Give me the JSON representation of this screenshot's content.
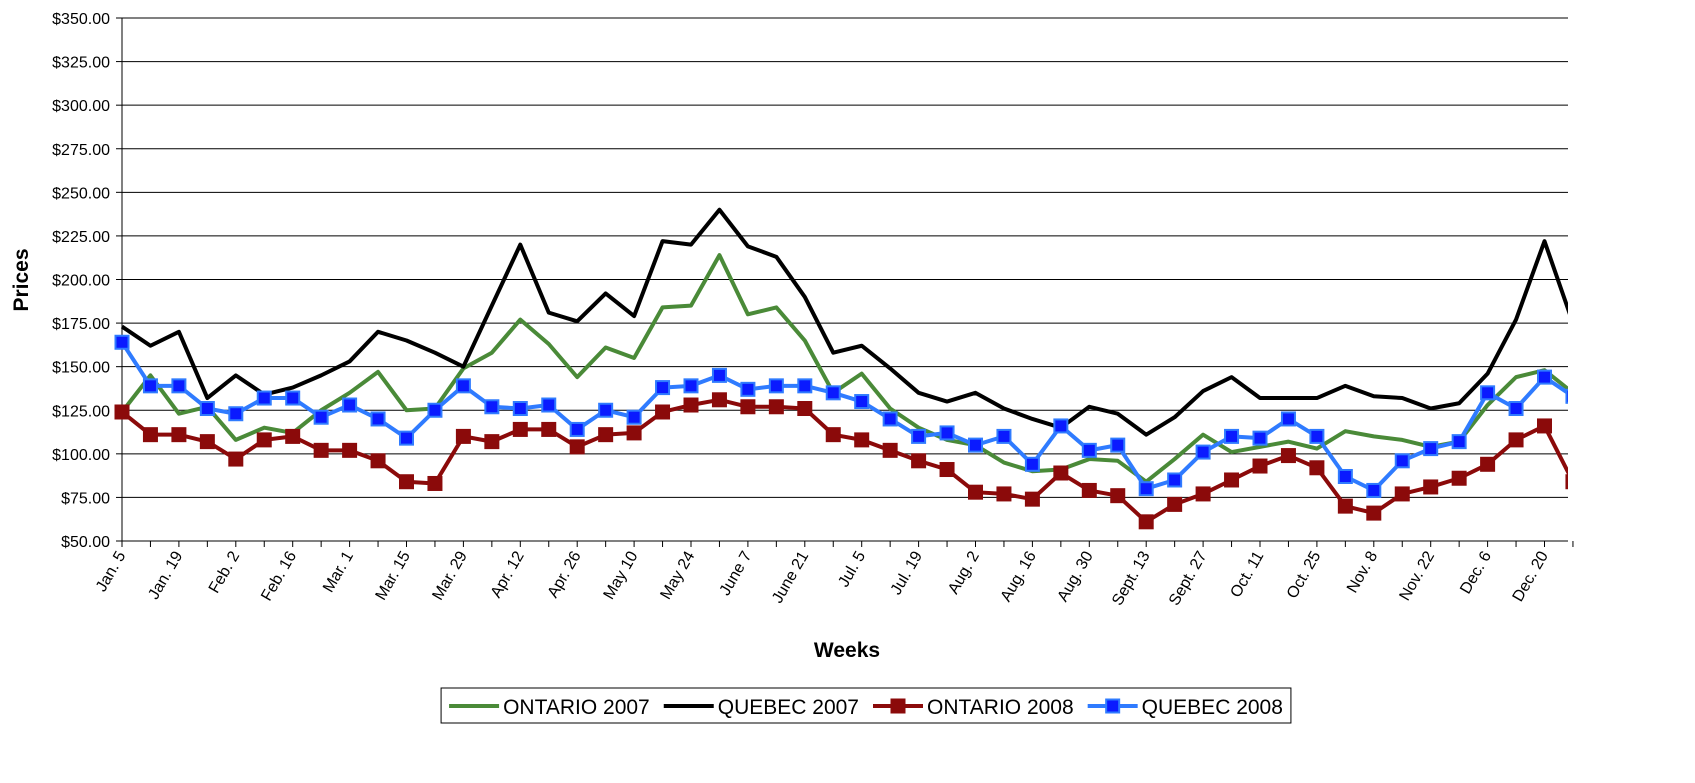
{
  "chart_data": {
    "type": "line",
    "x_label": "Weeks",
    "y_label": "Prices",
    "categories": [
      "Jan. 5",
      null,
      "Jan. 19",
      null,
      "Feb. 2",
      null,
      "Feb. 16",
      null,
      "Mar. 1",
      null,
      "Mar. 15",
      null,
      "Mar. 29",
      null,
      "Apr. 12",
      null,
      "Apr. 26",
      null,
      "May 10",
      null,
      "May 24",
      null,
      "June 7",
      null,
      "June 21",
      null,
      "Jul. 5",
      null,
      "Jul. 19",
      null,
      "Aug. 2",
      null,
      "Aug. 16",
      null,
      "Aug. 30",
      null,
      "Sept. 13",
      null,
      "Sept. 27",
      null,
      "Oct. 11",
      null,
      "Oct. 25",
      null,
      "Nov. 8",
      null,
      "Nov. 22",
      null,
      "Dec. 6",
      null,
      "Dec. 20",
      null
    ],
    "series": [
      {
        "name": "ONTARIO 2007",
        "color": "#4a8a38",
        "marker": "none",
        "values": [
          124,
          145,
          123,
          127,
          108,
          115,
          112,
          125,
          135,
          147,
          125,
          126,
          149,
          158,
          177,
          163,
          144,
          161,
          155,
          184,
          185,
          214,
          180,
          184,
          165,
          135,
          146,
          126,
          115,
          108,
          105,
          95,
          90,
          91,
          97,
          96,
          84,
          97,
          111,
          101,
          104,
          107,
          103,
          113,
          110,
          108,
          104,
          107,
          128,
          144,
          148,
          135
        ]
      },
      {
        "name": "QUEBEC 2007",
        "color": "#000000",
        "marker": "none",
        "values": [
          173,
          162,
          170,
          132,
          145,
          134,
          138,
          145,
          153,
          170,
          165,
          158,
          150,
          185,
          220,
          181,
          176,
          192,
          179,
          222,
          220,
          240,
          219,
          213,
          190,
          158,
          162,
          149,
          135,
          130,
          135,
          126,
          120,
          115,
          127,
          123,
          111,
          121,
          136,
          144,
          132,
          132,
          132,
          139,
          133,
          132,
          126,
          129,
          146,
          177,
          222,
          175
        ]
      },
      {
        "name": "ONTARIO 2008",
        "color": "#8b0a0a",
        "marker": "square",
        "values": [
          124,
          111,
          111,
          107,
          97,
          108,
          110,
          102,
          102,
          96,
          84,
          83,
          110,
          107,
          114,
          114,
          104,
          111,
          112,
          124,
          128,
          131,
          127,
          127,
          126,
          111,
          108,
          102,
          96,
          91,
          78,
          77,
          74,
          89,
          79,
          76,
          61,
          71,
          77,
          85,
          93,
          99,
          92,
          70,
          66,
          77,
          81,
          86,
          94,
          108,
          116,
          84
        ]
      },
      {
        "name": "QUEBEC 2008",
        "color": "#2f7bff",
        "marker": "square",
        "marker_color": "#0a1aff",
        "values": [
          164,
          139,
          139,
          126,
          123,
          132,
          132,
          121,
          128,
          120,
          109,
          125,
          139,
          127,
          126,
          128,
          114,
          125,
          121,
          138,
          139,
          145,
          137,
          139,
          139,
          135,
          130,
          120,
          110,
          112,
          105,
          110,
          94,
          116,
          102,
          105,
          80,
          85,
          101,
          110,
          109,
          120,
          110,
          87,
          79,
          96,
          103,
          107,
          135,
          126,
          144,
          133
        ]
      }
    ],
    "ylim": [
      50,
      350
    ],
    "yticks": [
      {
        "value": 50,
        "label": "$50.00"
      },
      {
        "value": 75,
        "label": "$75.00"
      },
      {
        "value": 100,
        "label": "$100.00"
      },
      {
        "value": 125,
        "label": "$125.00"
      },
      {
        "value": 150,
        "label": "$150.00"
      },
      {
        "value": 175,
        "label": "$175.00"
      },
      {
        "value": 200,
        "label": "$200.00"
      },
      {
        "value": 225,
        "label": "$225.00"
      },
      {
        "value": 250,
        "label": "$250.00"
      },
      {
        "value": 275,
        "label": "$275.00"
      },
      {
        "value": 300,
        "label": "$300.00"
      },
      {
        "value": 325,
        "label": "$325.00"
      },
      {
        "value": 350,
        "label": "$350.00"
      }
    ],
    "grid": true,
    "legend": "bottom"
  }
}
